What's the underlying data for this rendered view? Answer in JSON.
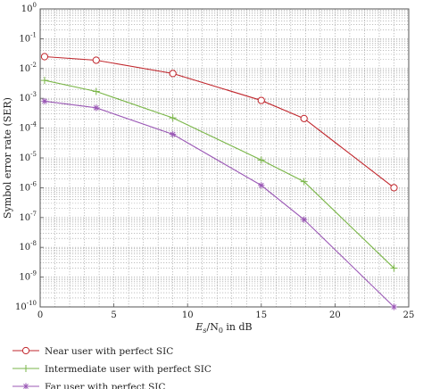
{
  "chart_data": {
    "type": "line",
    "xlabel_parts": {
      "e": "E",
      "s": "s",
      "mid": "/N",
      "zero": "0",
      "rest": " in dB"
    },
    "ylabel": "Symbol error rate (SER)",
    "xlim": [
      0,
      25
    ],
    "ylim_exp": [
      -10,
      0
    ],
    "y_scale": "log",
    "grid": true,
    "legend_position": "bottom-left",
    "x_ticks": [
      "0",
      "5",
      "10",
      "15",
      "20",
      "25"
    ],
    "y_tick_exponents": [
      "0",
      "-1",
      "-2",
      "-3",
      "-4",
      "-5",
      "-6",
      "-7",
      "-8",
      "-9",
      "-10"
    ],
    "series": [
      {
        "name": "Near user with perfect SIC",
        "color": "#c1272d",
        "marker": "circle",
        "x": [
          0.3,
          3.8,
          9.0,
          15.0,
          17.9,
          24.0
        ],
        "y": [
          0.025,
          0.019,
          0.0068,
          0.00085,
          0.00021,
          1e-06
        ]
      },
      {
        "name": "Intermediate user with perfect SIC",
        "color": "#7ab648",
        "marker": "plus",
        "x": [
          0.3,
          3.8,
          9.0,
          15.0,
          17.9,
          24.0
        ],
        "y": [
          0.004,
          0.0017,
          0.00022,
          8.5e-06,
          1.6e-06,
          2e-09
        ]
      },
      {
        "name": "Far user with perfect SIC",
        "color": "#9b59b6",
        "marker": "star",
        "x": [
          0.3,
          3.8,
          9.0,
          15.0,
          17.9,
          24.0
        ],
        "y": [
          0.0008,
          0.00048,
          6.2e-05,
          1.2e-06,
          8.5e-08,
          1e-10
        ]
      }
    ]
  }
}
